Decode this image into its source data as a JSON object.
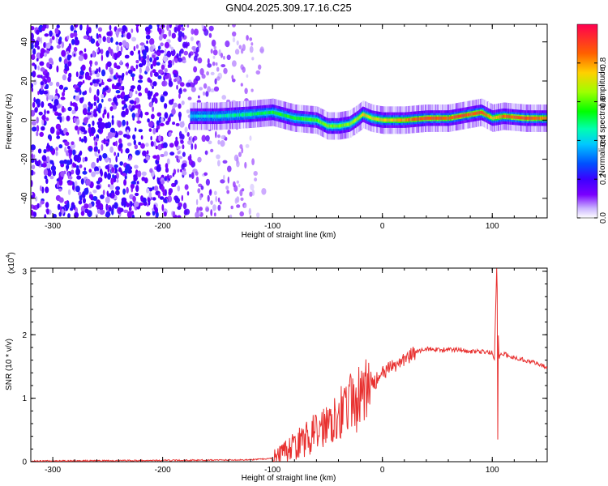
{
  "title": "GN04.2025.309.17.16.C25",
  "chart_data": [
    {
      "type": "heatmap",
      "xlabel": "Height of straight line (km)",
      "ylabel": "Frequency (Hz)",
      "xlim": [
        -320,
        150
      ],
      "ylim": [
        -50,
        49
      ],
      "xticks": [
        -300,
        -200,
        -100,
        0,
        100
      ],
      "xtick_labels": [
        "-300",
        "-200",
        "-100",
        "0",
        "100"
      ],
      "yticks": [
        -40,
        -20,
        0,
        20,
        40
      ],
      "ytick_labels": [
        "-40",
        "-20",
        "0",
        "20",
        "40"
      ],
      "colorbar": {
        "label": "Normalized spectral amplitude",
        "range": [
          0,
          1
        ],
        "ticks": [
          0.0,
          0.2,
          0.4,
          0.6,
          0.8
        ],
        "tick_labels": [
          "0.0",
          "0.2",
          "0.4",
          "0.6",
          "0.8"
        ],
        "colors": [
          "#ffffff",
          "#c9b3ff",
          "#7a00ff",
          "#3c00ff",
          "#0050ff",
          "#00c8ff",
          "#00ffb0",
          "#00ff00",
          "#9dff00",
          "#ffd000",
          "#ff6000",
          "#ff0050"
        ]
      },
      "description_regions": [
        {
          "x_range": [
            -320,
            -110
          ],
          "note": "noise",
          "amplitude": 0.15
        },
        {
          "x_range": [
            -175,
            150
          ],
          "note": "signal band near 0 Hz",
          "amplitude": 0.9
        }
      ],
      "signal_track": {
        "x": [
          -175,
          -150,
          -120,
          -100,
          -80,
          -60,
          -50,
          -40,
          -30,
          -22,
          -18,
          -10,
          0,
          20,
          40,
          60,
          70,
          80,
          90,
          100,
          110,
          130,
          150
        ],
        "freq": [
          2,
          2,
          3,
          4,
          1,
          0,
          -3,
          -3,
          -2,
          1,
          3,
          1,
          0,
          0,
          1,
          1,
          2,
          3,
          4,
          1,
          2,
          1,
          1
        ],
        "amplitude": [
          0.4,
          0.45,
          0.5,
          0.55,
          0.55,
          0.6,
          0.65,
          0.6,
          0.65,
          0.7,
          0.75,
          0.7,
          0.75,
          0.8,
          0.9,
          0.85,
          0.9,
          0.85,
          0.9,
          0.75,
          0.85,
          0.9,
          0.8
        ]
      }
    },
    {
      "type": "line",
      "xlabel": "Height of straight line (km)",
      "ylabel": "SNR (10 * v/v)",
      "scale_label": "(x10",
      "scale_exponent": "4",
      "scale_suffix": ")",
      "xlim": [
        -320,
        150
      ],
      "ylim": [
        0,
        3.05
      ],
      "xticks": [
        -300,
        -200,
        -100,
        0,
        100
      ],
      "xtick_labels": [
        "-300",
        "-200",
        "-100",
        "0",
        "100"
      ],
      "yticks": [
        0,
        1,
        2,
        3
      ],
      "ytick_labels": [
        "0",
        "1",
        "2",
        "3"
      ],
      "color": "#e8302f",
      "series": [
        {
          "name": "SNR",
          "x": [
            -320,
            -200,
            -120,
            -100,
            -90,
            -85,
            -80,
            -75,
            -70,
            -65,
            -60,
            -55,
            -50,
            -45,
            -40,
            -35,
            -30,
            -25,
            -20,
            -15,
            -10,
            0,
            10,
            20,
            30,
            40,
            50,
            60,
            70,
            80,
            90,
            100,
            102,
            104,
            106,
            110,
            120,
            130,
            140,
            150
          ],
          "y": [
            0.01,
            0.02,
            0.03,
            0.05,
            0.12,
            0.2,
            0.25,
            0.3,
            0.35,
            0.4,
            0.48,
            0.55,
            0.62,
            0.7,
            0.78,
            0.85,
            0.9,
            0.95,
            1.0,
            1.1,
            1.2,
            1.38,
            1.5,
            1.62,
            1.72,
            1.78,
            1.77,
            1.76,
            1.77,
            1.74,
            1.73,
            1.72,
            1.6,
            3.05,
            1.65,
            1.7,
            1.64,
            1.6,
            1.55,
            1.48
          ]
        }
      ],
      "notes": "noisy spikes between -100 and -10 km; sharp spike ~3.0 at ~104 km"
    }
  ]
}
